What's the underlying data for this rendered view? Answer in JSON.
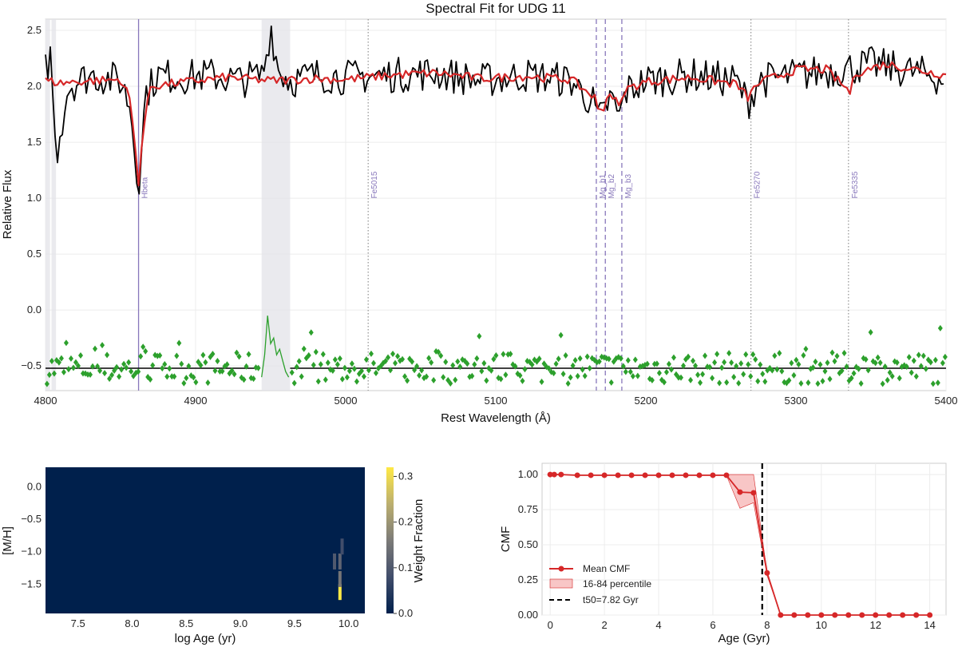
{
  "chart_data": [
    {
      "type": "line",
      "title": "Spectral Fit for UDG 11",
      "xlabel": "Rest Wavelength (Å)",
      "ylabel": "Relative Flux",
      "xlim": [
        4800,
        5400
      ],
      "ylim": [
        -0.72,
        2.6
      ],
      "xticks": [
        4800,
        4900,
        5000,
        5100,
        5200,
        5300,
        5400
      ],
      "yticks": [
        -0.5,
        0.0,
        0.5,
        1.0,
        1.5,
        2.0,
        2.5
      ],
      "xtick_labels": [
        "4800",
        "4900",
        "5000",
        "5100",
        "5200",
        "5300",
        "5400"
      ],
      "ytick_labels": [
        "−0.5",
        "0.0",
        "0.5",
        "1.0",
        "1.5",
        "2.0",
        "2.5"
      ],
      "grid": true,
      "masked_regions": [
        [
          4800,
          4803
        ],
        [
          4804,
          4807
        ],
        [
          4944,
          4963
        ]
      ],
      "lines": [
        {
          "name": "Hbeta",
          "x": 4862,
          "style": "solid"
        },
        {
          "name": "Fe5015",
          "x": 5015,
          "style": "dotted"
        },
        {
          "name": "Mg_b1",
          "x": 5167,
          "style": "dashed"
        },
        {
          "name": "Mg_b2",
          "x": 5173,
          "style": "dashed"
        },
        {
          "name": "Mg_b3",
          "x": 5184,
          "style": "dashed"
        },
        {
          "name": "Fe5270",
          "x": 5270,
          "style": "dotted"
        },
        {
          "name": "Fe5335",
          "x": 5335,
          "style": "dotted"
        }
      ],
      "series": [
        {
          "role": "observed",
          "color": "#000000",
          "x": [
            4800,
            4804,
            4806,
            4808,
            4815,
            4830,
            4850,
            4857,
            4860,
            4862,
            4864,
            4867,
            4875,
            4890,
            4910,
            4930,
            4944,
            4947,
            4950,
            4955,
            4963,
            4980,
            5000,
            5030,
            5060,
            5090,
            5120,
            5150,
            5165,
            5168,
            5172,
            5176,
            5183,
            5186,
            5200,
            5230,
            5260,
            5268,
            5275,
            5300,
            5330,
            5350,
            5370,
            5390,
            5400
          ],
          "y": [
            2.15,
            2.3,
            1.5,
            1.45,
            2.0,
            2.1,
            2.05,
            1.8,
            1.3,
            1.12,
            1.5,
            1.95,
            2.1,
            2.08,
            2.1,
            2.05,
            2.1,
            2.25,
            2.55,
            2.15,
            2.05,
            2.1,
            2.08,
            2.1,
            2.12,
            2.05,
            2.1,
            2.05,
            1.85,
            1.7,
            1.75,
            1.9,
            1.72,
            1.95,
            2.05,
            2.1,
            2.05,
            1.85,
            2.05,
            2.1,
            2.15,
            2.2,
            2.15,
            2.1,
            2.05
          ]
        },
        {
          "role": "model",
          "color": "#d62728",
          "x": [
            4800,
            4810,
            4830,
            4850,
            4856,
            4859,
            4862,
            4865,
            4870,
            4900,
            4920,
            4950,
            4980,
            5000,
            5030,
            5060,
            5090,
            5120,
            5150,
            5166,
            5168,
            5172,
            5176,
            5183,
            5186,
            5200,
            5230,
            5260,
            5268,
            5275,
            5300,
            5320,
            5336,
            5340,
            5360,
            5380,
            5400
          ],
          "y": [
            2.05,
            2.03,
            2.05,
            2.06,
            1.9,
            1.55,
            1.15,
            1.6,
            2.0,
            2.05,
            2.08,
            2.05,
            2.07,
            2.06,
            2.1,
            2.12,
            2.07,
            2.09,
            2.06,
            1.9,
            1.78,
            1.82,
            1.95,
            1.8,
            1.97,
            2.04,
            2.08,
            2.02,
            1.9,
            2.03,
            2.15,
            2.15,
            1.95,
            2.12,
            2.2,
            2.15,
            2.1
          ]
        },
        {
          "role": "residuals",
          "color": "#2ca02c",
          "marker": "diamond",
          "baseline": -0.52,
          "y_range": [
            -0.72,
            -0.15
          ]
        }
      ]
    },
    {
      "type": "heatmap",
      "xlabel": "log Age (yr)",
      "ylabel": "[M/H]",
      "colorbar_label": "Weight Fraction",
      "xlim": [
        7.2,
        10.15
      ],
      "ylim": [
        -1.95,
        0.3
      ],
      "xticks": [
        7.5,
        8.0,
        8.5,
        9.0,
        9.5,
        10.0
      ],
      "yticks": [
        -1.5,
        -1.0,
        -0.5,
        0.0
      ],
      "xtick_labels": [
        "7.5",
        "8.0",
        "8.5",
        "9.0",
        "9.5",
        "10.0"
      ],
      "ytick_labels": [
        "−1.5",
        "−1.0",
        "−0.5",
        "0.0"
      ],
      "colorbar_ticks": [
        0.0,
        0.1,
        0.2,
        0.3
      ],
      "colorbar_tick_labels": [
        "0.0",
        "0.1",
        "0.2",
        "0.3"
      ],
      "colorbar_max": 0.32,
      "cells": [
        {
          "log_age": 9.87,
          "mh": -1.15,
          "weight": 0.1
        },
        {
          "log_age": 9.92,
          "mh": -1.62,
          "weight": 0.32
        },
        {
          "log_age": 9.92,
          "mh": -1.42,
          "weight": 0.15
        },
        {
          "log_age": 9.92,
          "mh": -1.15,
          "weight": 0.12
        },
        {
          "log_age": 9.94,
          "mh": -0.92,
          "weight": 0.08
        }
      ]
    },
    {
      "type": "line",
      "xlabel": "Age (Gyr)",
      "ylabel": "CMF",
      "xlim": [
        -0.3,
        14.6
      ],
      "ylim": [
        0.0,
        1.08
      ],
      "xticks": [
        0,
        2,
        4,
        6,
        8,
        10,
        12,
        14
      ],
      "yticks": [
        0.0,
        0.25,
        0.5,
        0.75,
        1.0
      ],
      "xtick_labels": [
        "0",
        "2",
        "4",
        "6",
        "8",
        "10",
        "12",
        "14"
      ],
      "ytick_labels": [
        "0.00",
        "0.25",
        "0.50",
        "0.75",
        "1.00"
      ],
      "grid": true,
      "legend_position": "lower-left",
      "legend": [
        "Mean CMF",
        "16-84 percentile",
        "t50=7.82 Gyr"
      ],
      "t50": 7.82,
      "series": [
        {
          "name": "Mean CMF",
          "color": "#d62728",
          "x": [
            0.0,
            0.15,
            0.4,
            1.0,
            1.5,
            2.0,
            2.5,
            3.0,
            3.5,
            4.0,
            4.5,
            5.0,
            5.5,
            6.0,
            6.5,
            7.0,
            7.5,
            8.0,
            8.5,
            9.0,
            9.5,
            10.0,
            10.5,
            11.0,
            11.5,
            12.0,
            12.5,
            13.0,
            13.5,
            14.0
          ],
          "y": [
            1.0,
            1.0,
            1.0,
            0.995,
            0.995,
            0.995,
            0.995,
            0.995,
            0.995,
            0.995,
            0.995,
            0.995,
            0.995,
            0.995,
            0.995,
            0.875,
            0.87,
            0.3,
            0.0,
            0.0,
            0.0,
            0.0,
            0.0,
            0.0,
            0.0,
            0.0,
            0.0,
            0.0,
            0.0,
            0.0
          ]
        },
        {
          "name": "16-84 percentile",
          "color": "#f4a0a0",
          "x": [
            6.5,
            7.0,
            7.5,
            8.0,
            8.5
          ],
          "upper": [
            1.0,
            1.0,
            1.0,
            0.3,
            0.0
          ],
          "lower": [
            0.995,
            0.76,
            0.8,
            0.28,
            0.0
          ]
        }
      ]
    }
  ]
}
